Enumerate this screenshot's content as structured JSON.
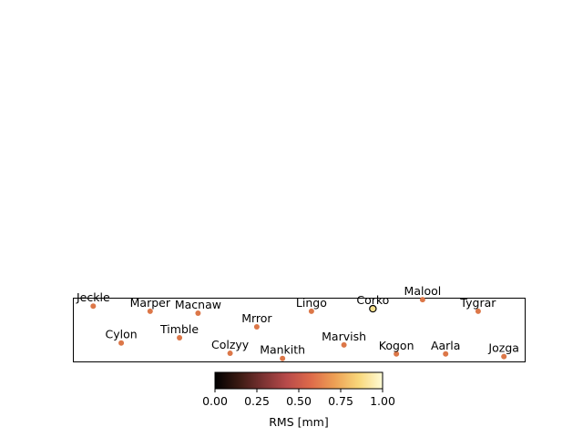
{
  "chart_data": {
    "type": "scatter",
    "x_range": [
      0,
      1
    ],
    "y_range": [
      0,
      1
    ],
    "stations": [
      {
        "name": "Jeckle",
        "x": 0.045,
        "y": 0.87,
        "value": 0.62
      },
      {
        "name": "Marper",
        "x": 0.171,
        "y": 0.79,
        "value": 0.62
      },
      {
        "name": "Macnaw",
        "x": 0.277,
        "y": 0.76,
        "value": 0.62
      },
      {
        "name": "Lingo",
        "x": 0.528,
        "y": 0.79,
        "value": 0.62
      },
      {
        "name": "Corko",
        "x": 0.664,
        "y": 0.83,
        "value": 0.95,
        "highlight": true
      },
      {
        "name": "Malool",
        "x": 0.774,
        "y": 0.97,
        "value": 0.62
      },
      {
        "name": "Tygrar",
        "x": 0.897,
        "y": 0.79,
        "value": 0.62
      },
      {
        "name": "Cylon",
        "x": 0.107,
        "y": 0.3,
        "value": 0.62
      },
      {
        "name": "Timble",
        "x": 0.236,
        "y": 0.38,
        "value": 0.62
      },
      {
        "name": "Mrror",
        "x": 0.407,
        "y": 0.55,
        "value": 0.62
      },
      {
        "name": "Colzyy",
        "x": 0.348,
        "y": 0.14,
        "value": 0.62
      },
      {
        "name": "Mankith",
        "x": 0.464,
        "y": 0.06,
        "value": 0.62
      },
      {
        "name": "Marvish",
        "x": 0.6,
        "y": 0.27,
        "value": 0.62
      },
      {
        "name": "Kogon",
        "x": 0.716,
        "y": 0.13,
        "value": 0.62
      },
      {
        "name": "Aarla",
        "x": 0.825,
        "y": 0.13,
        "value": 0.62
      },
      {
        "name": "Jozga",
        "x": 0.954,
        "y": 0.09,
        "value": 0.62
      }
    ],
    "colorbar": {
      "label": "RMS [mm]",
      "ticks": [
        "0.00",
        "0.25",
        "0.50",
        "0.75",
        "1.00"
      ],
      "range": [
        0,
        1
      ],
      "colormap": [
        "#000000",
        "#3a1a12",
        "#7a3232",
        "#b84a4a",
        "#de6a4a",
        "#eda055",
        "#f8d77a",
        "#fffbd6"
      ]
    },
    "marker_color": "#dc7748",
    "highlight_color": "#f8e08c"
  }
}
